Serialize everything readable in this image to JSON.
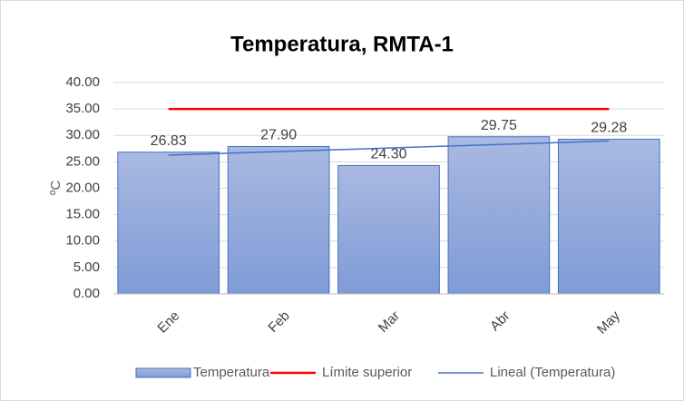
{
  "chart_data": {
    "type": "bar",
    "title": "Temperatura, RMTA-1",
    "y_label": "ºC",
    "categories": [
      "Ene",
      "Feb",
      "Mar",
      "Abr",
      "May"
    ],
    "series": [
      {
        "name": "Temperatura",
        "type": "bar",
        "color": "#8faadc",
        "values": [
          26.83,
          27.9,
          24.3,
          29.75,
          29.28
        ],
        "value_labels": [
          "26.83",
          "27.90",
          "24.30",
          "29.75",
          "29.28"
        ]
      },
      {
        "name": "Límite superior",
        "type": "line",
        "color": "#ff0000",
        "values": [
          35,
          35,
          35,
          35,
          35
        ]
      },
      {
        "name": "Lineal (Temperatura)",
        "type": "line",
        "color": "#4472c4",
        "values": [
          26.26,
          26.94,
          27.61,
          28.29,
          28.96
        ]
      }
    ],
    "ylim": [
      0,
      40
    ],
    "yticks": [
      {
        "value": 0,
        "label": "0.00"
      },
      {
        "value": 5,
        "label": "5.00"
      },
      {
        "value": 10,
        "label": "10.00"
      },
      {
        "value": 15,
        "label": "15.00"
      },
      {
        "value": 20,
        "label": "20.00"
      },
      {
        "value": 25,
        "label": "25.00"
      },
      {
        "value": 30,
        "label": "30.00"
      },
      {
        "value": 35,
        "label": "35.00"
      },
      {
        "value": 40,
        "label": "40.00"
      }
    ],
    "grid": true,
    "legend": "bottom"
  }
}
